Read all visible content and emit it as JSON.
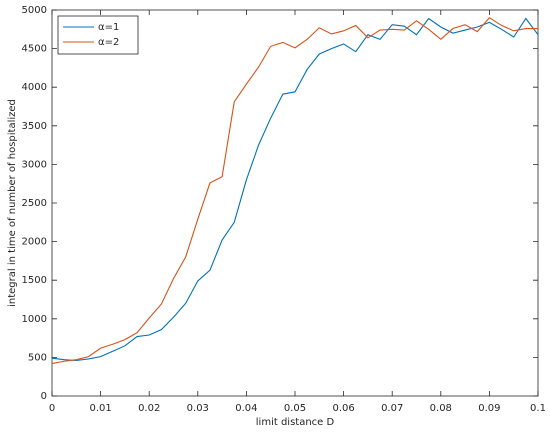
{
  "chart_data": {
    "type": "line",
    "xlabel": "limit distance D",
    "ylabel": "integral in time of number of hospitalized",
    "x": [
      0,
      0.0025,
      0.005,
      0.0075,
      0.01,
      0.0125,
      0.015,
      0.0175,
      0.02,
      0.0225,
      0.025,
      0.0275,
      0.03,
      0.0325,
      0.035,
      0.0375,
      0.04,
      0.0425,
      0.045,
      0.0475,
      0.05,
      0.0525,
      0.055,
      0.0575,
      0.06,
      0.0625,
      0.065,
      0.0675,
      0.07,
      0.0725,
      0.075,
      0.0775,
      0.08,
      0.0825,
      0.085,
      0.0875,
      0.09,
      0.0925,
      0.095,
      0.0975,
      0.1
    ],
    "series": [
      {
        "name": "α=1",
        "color": "#0072bd",
        "values": [
          490,
          470,
          460,
          480,
          510,
          580,
          650,
          770,
          790,
          860,
          1020,
          1200,
          1490,
          1630,
          2020,
          2250,
          2800,
          3250,
          3600,
          3910,
          3940,
          4230,
          4430,
          4500,
          4560,
          4460,
          4680,
          4620,
          4810,
          4790,
          4680,
          4890,
          4780,
          4700,
          4740,
          4780,
          4840,
          4750,
          4650,
          4890,
          4680
        ]
      },
      {
        "name": "α=2",
        "color": "#d95319",
        "values": [
          420,
          450,
          470,
          510,
          620,
          670,
          730,
          820,
          1010,
          1190,
          1520,
          1800,
          2290,
          2760,
          2840,
          3810,
          4040,
          4260,
          4530,
          4580,
          4510,
          4620,
          4770,
          4690,
          4730,
          4800,
          4640,
          4740,
          4750,
          4740,
          4860,
          4750,
          4620,
          4760,
          4810,
          4720,
          4900,
          4800,
          4730,
          4760,
          4760
        ]
      }
    ],
    "xlim": [
      0,
      0.1
    ],
    "xticks": [
      0,
      0.01,
      0.02,
      0.03,
      0.04,
      0.05,
      0.06,
      0.07,
      0.08,
      0.09,
      0.1
    ],
    "ylim": [
      0,
      5000
    ],
    "yticks": [
      0,
      500,
      1000,
      1500,
      2000,
      2500,
      3000,
      3500,
      4000,
      4500,
      5000
    ],
    "legend": "top-left",
    "grid": false
  }
}
